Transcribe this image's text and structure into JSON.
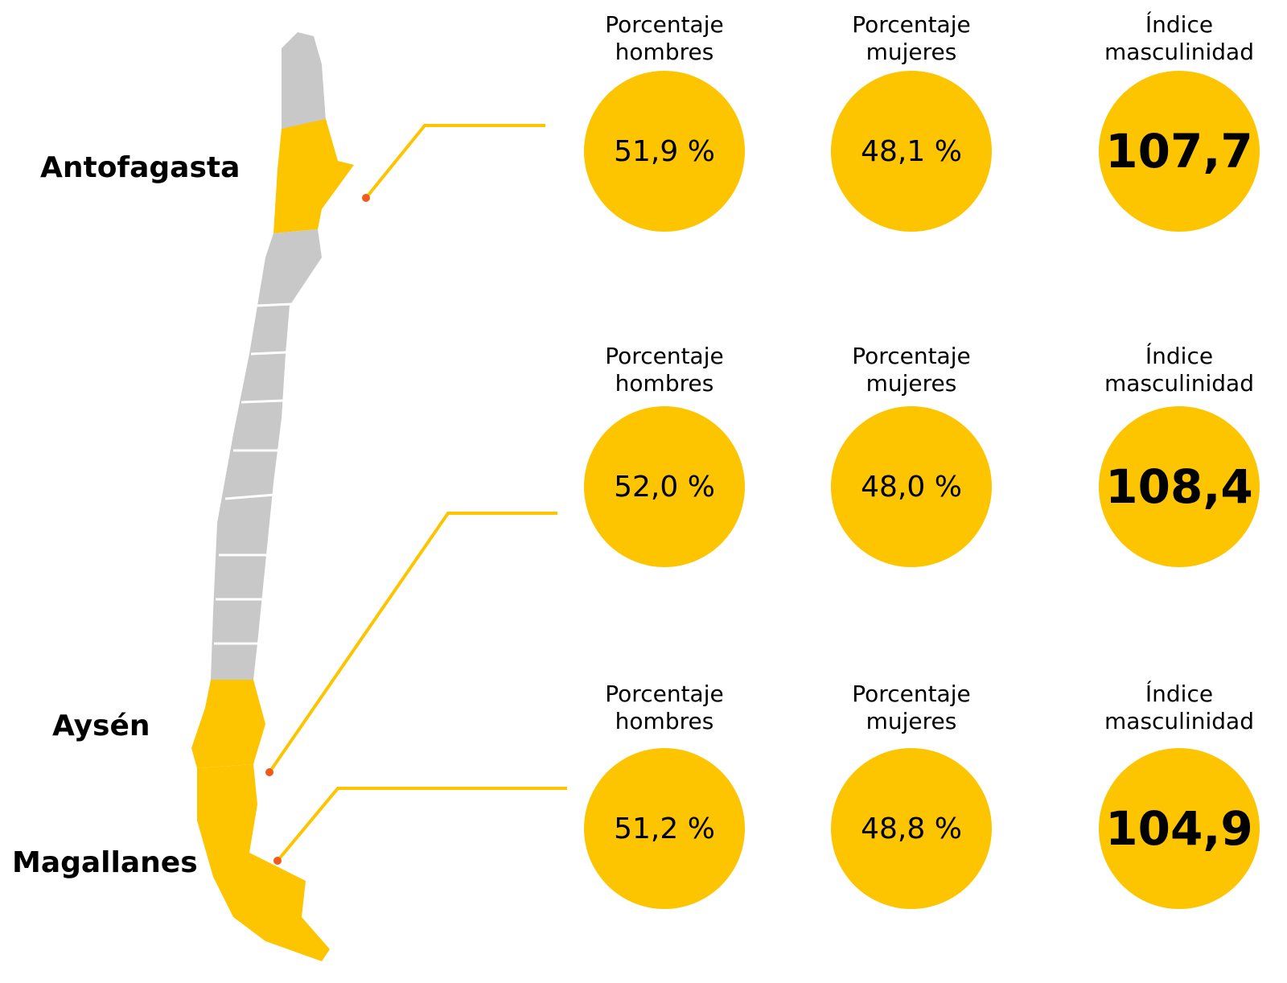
{
  "regions": [
    {
      "name": "Antofagasta",
      "stats": [
        {
          "label": "Porcentaje hombres",
          "value": "51,9 %"
        },
        {
          "label": "Porcentaje mujeres",
          "value": "48,1 %"
        },
        {
          "label": "Índice masculinidad",
          "value": "107,7"
        }
      ]
    },
    {
      "name": "Aysén",
      "stats": [
        {
          "label": "Porcentaje hombres",
          "value": "52,0 %"
        },
        {
          "label": "Porcentaje mujeres",
          "value": "48,0 %"
        },
        {
          "label": "Índice masculinidad",
          "value": "108,4"
        }
      ]
    },
    {
      "name": "Magallanes",
      "stats": [
        {
          "label": "Porcentaje hombres",
          "value": "51,2 %"
        },
        {
          "label": "Porcentaje mujeres",
          "value": "48,8 %"
        },
        {
          "label": "Índice masculinidad",
          "value": "104,9"
        }
      ]
    }
  ]
}
